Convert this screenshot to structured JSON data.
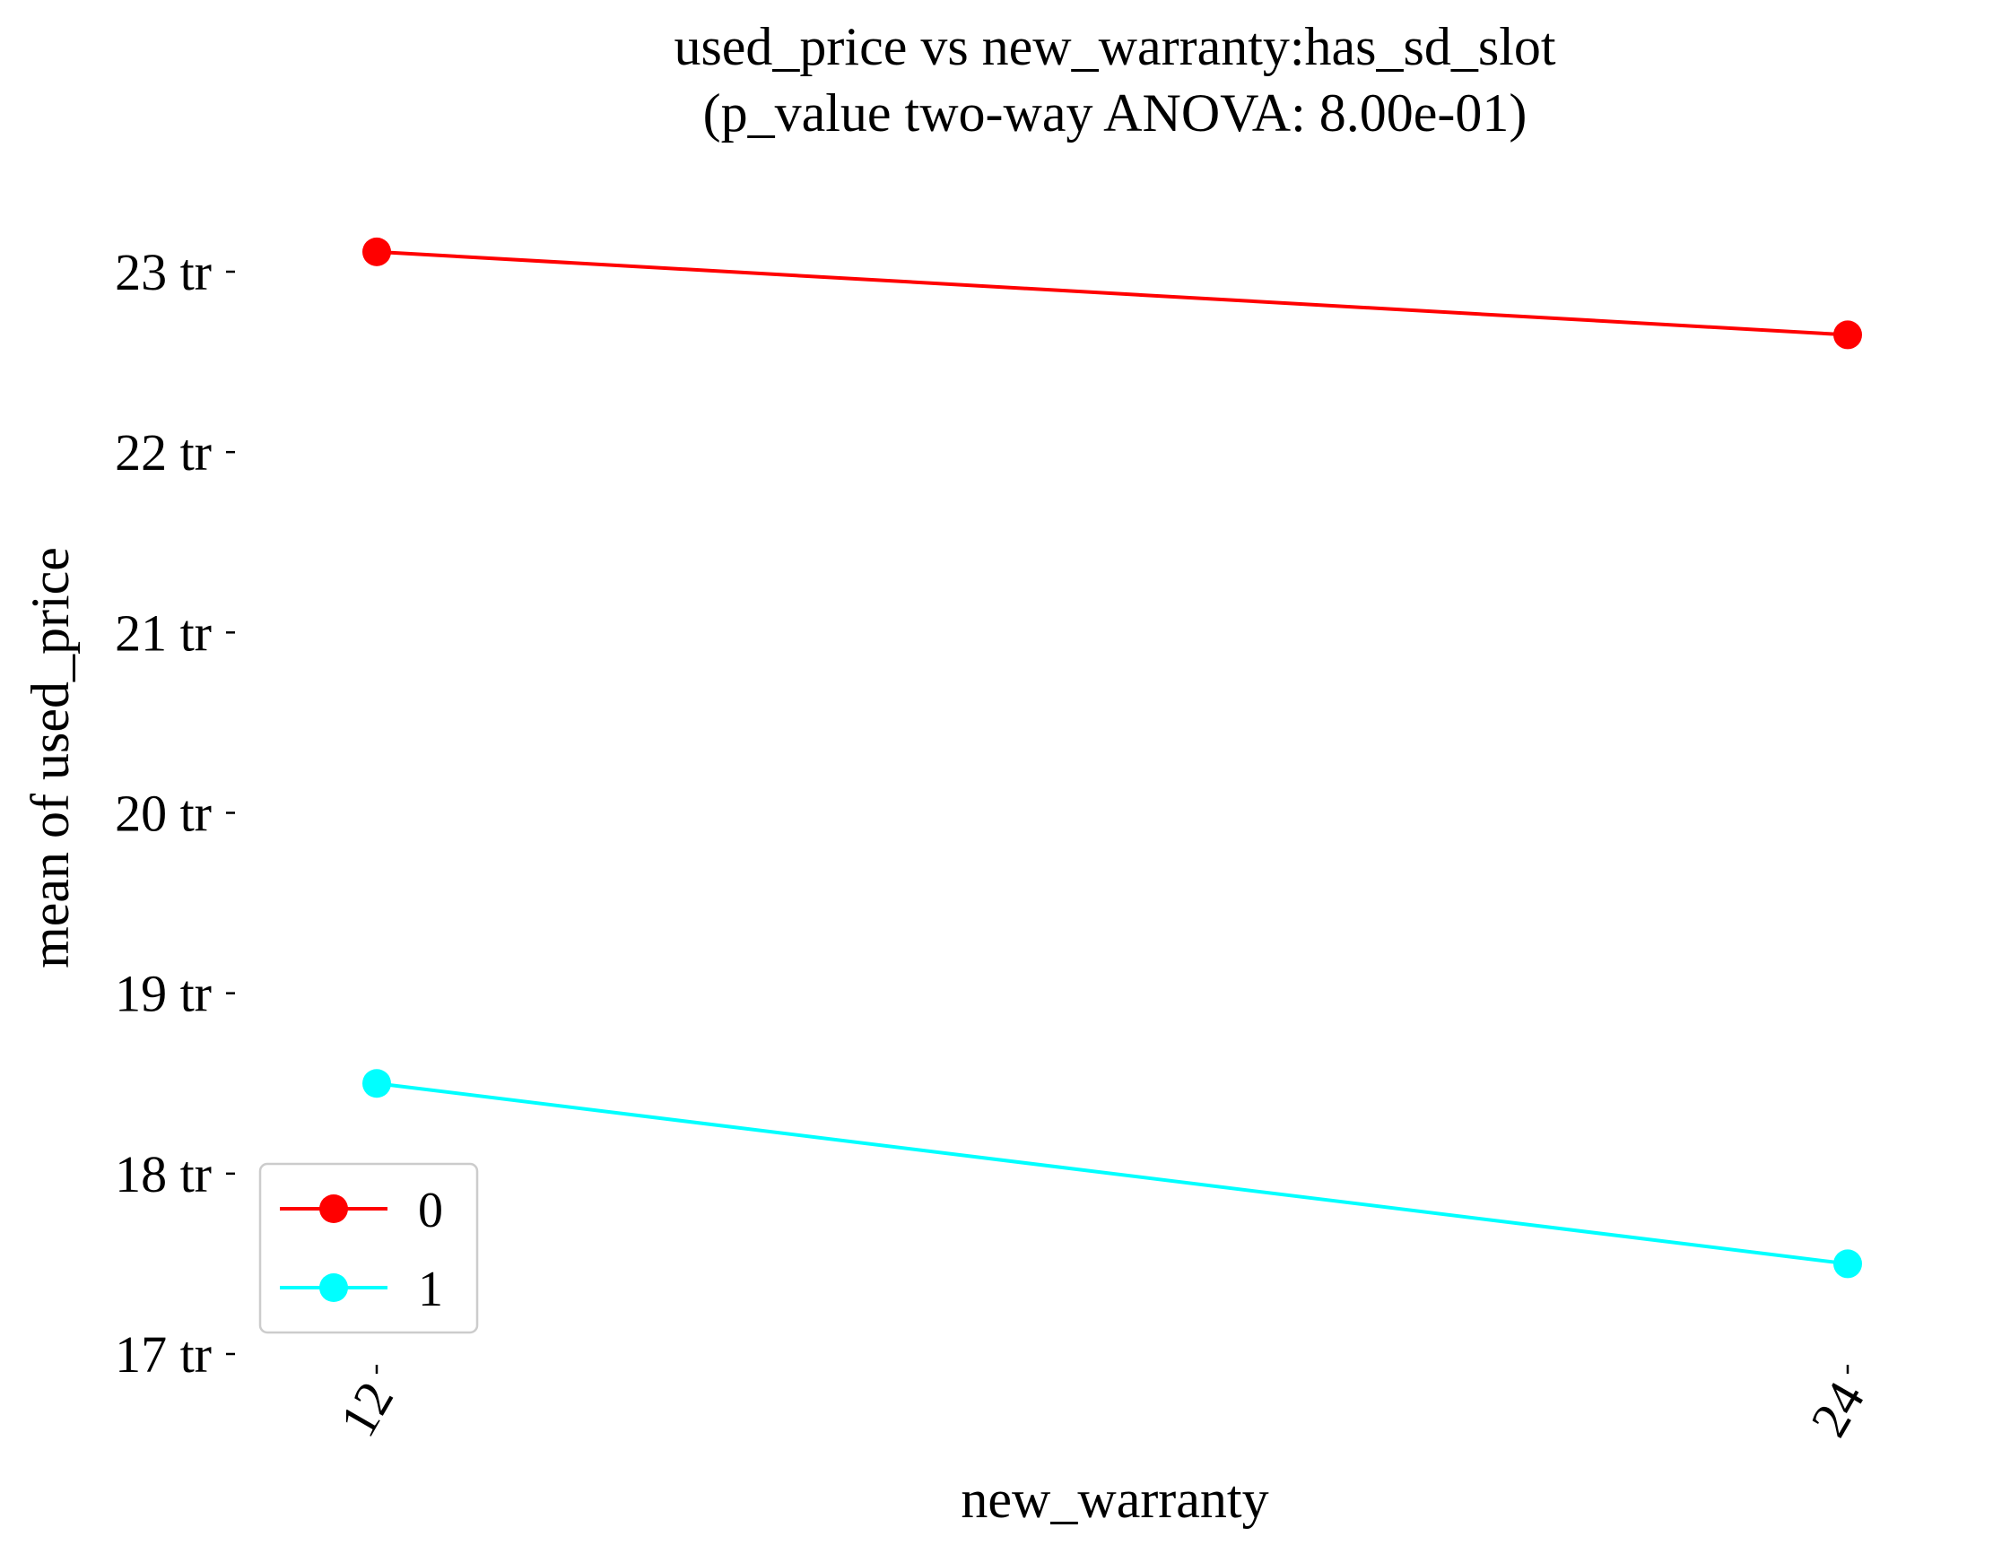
{
  "chart_data": {
    "type": "line",
    "title": "used_price vs new_warranty:has_sd_slot",
    "subtitle": "(p_value two-way ANOVA: 8.00e-01)",
    "xlabel": "new_warranty",
    "ylabel": "mean of used_price",
    "categories": [
      "12",
      "24"
    ],
    "ylim": [
      17,
      23.3
    ],
    "yticks": [
      17,
      18,
      19,
      20,
      21,
      22,
      23
    ],
    "ytick_labels": [
      "17 tr",
      "18 tr",
      "19 tr",
      "20 tr",
      "21 tr",
      "22 tr",
      "23 tr"
    ],
    "grid": false,
    "legend_position": "bottom-left",
    "series": [
      {
        "name": "0",
        "color": "#ff0000",
        "values": [
          23.11,
          22.65
        ]
      },
      {
        "name": "1",
        "color": "#00ffff",
        "values": [
          18.5,
          17.5
        ]
      }
    ]
  }
}
